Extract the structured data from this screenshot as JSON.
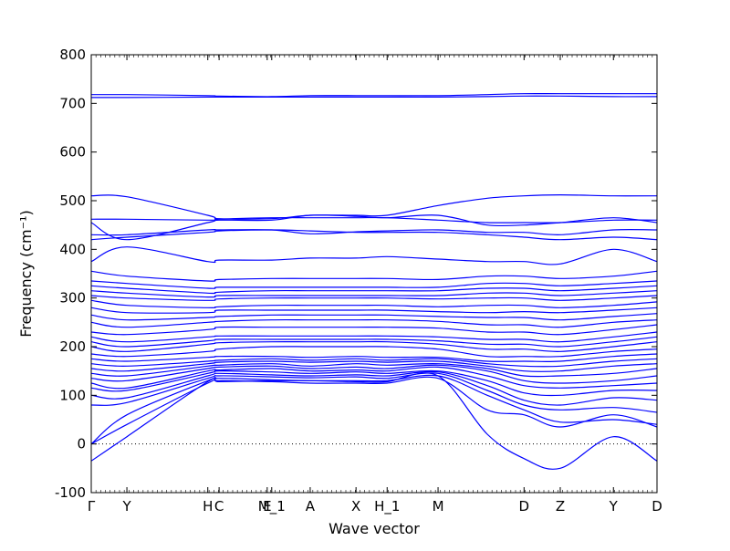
{
  "chart_data": {
    "type": "line",
    "title": "",
    "xlabel": "Wave vector",
    "ylabel": "Frequency (cm⁻¹)",
    "ylim": [
      -100,
      800
    ],
    "yticks": [
      -100,
      0,
      100,
      200,
      300,
      400,
      500,
      600,
      700,
      800
    ],
    "xlim": [
      0,
      1
    ],
    "grid": false,
    "zero_line": true,
    "line_color": "#0000ff",
    "high_symmetry_points": [
      {
        "label": "Γ",
        "x": 0.0
      },
      {
        "label": "Y",
        "x": 0.063
      },
      {
        "label": "H",
        "x": 0.206
      },
      {
        "label": "C",
        "x": 0.226
      },
      {
        "label": "E",
        "x": 0.311
      },
      {
        "label": "M_1",
        "x": 0.319
      },
      {
        "label": "A",
        "x": 0.387
      },
      {
        "label": "X",
        "x": 0.468
      },
      {
        "label": "H_1",
        "x": 0.523
      },
      {
        "label": "M",
        "x": 0.613
      },
      {
        "label": "D",
        "x": 0.765
      },
      {
        "label": "Z",
        "x": 0.829
      },
      {
        "label": "Y",
        "x": 0.923
      },
      {
        "label": "D",
        "x": 1.0
      }
    ],
    "bands_x": [
      0,
      0.063,
      0.206,
      0.226,
      0.319,
      0.387,
      0.468,
      0.523,
      0.613,
      0.7,
      0.765,
      0.829,
      0.923,
      1.0
    ],
    "bands": [
      [
        -35,
        15,
        128,
        128,
        130,
        130,
        128,
        128,
        140,
        20,
        -30,
        -50,
        15,
        -35
      ],
      [
        0,
        40,
        125,
        130,
        128,
        125,
        125,
        125,
        135,
        70,
        60,
        35,
        60,
        35
      ],
      [
        0,
        60,
        130,
        135,
        132,
        130,
        130,
        130,
        140,
        100,
        70,
        45,
        50,
        40
      ],
      [
        80,
        85,
        135,
        140,
        138,
        136,
        138,
        135,
        145,
        110,
        80,
        70,
        75,
        65
      ],
      [
        100,
        95,
        140,
        145,
        142,
        140,
        142,
        140,
        148,
        120,
        90,
        80,
        95,
        90
      ],
      [
        115,
        110,
        145,
        150,
        148,
        145,
        148,
        145,
        150,
        130,
        105,
        100,
        110,
        110
      ],
      [
        125,
        115,
        150,
        152,
        155,
        150,
        152,
        150,
        158,
        140,
        120,
        115,
        120,
        125
      ],
      [
        135,
        130,
        155,
        158,
        160,
        155,
        158,
        155,
        162,
        150,
        130,
        125,
        130,
        140
      ],
      [
        145,
        140,
        160,
        162,
        165,
        160,
        165,
        162,
        165,
        155,
        140,
        140,
        145,
        155
      ],
      [
        155,
        150,
        165,
        168,
        170,
        168,
        170,
        168,
        170,
        160,
        150,
        150,
        160,
        165
      ],
      [
        165,
        160,
        170,
        172,
        175,
        172,
        175,
        172,
        175,
        165,
        160,
        160,
        170,
        175
      ],
      [
        175,
        170,
        178,
        180,
        180,
        178,
        180,
        178,
        178,
        170,
        170,
        170,
        180,
        185
      ],
      [
        185,
        180,
        190,
        195,
        200,
        200,
        200,
        200,
        195,
        180,
        180,
        180,
        190,
        195
      ],
      [
        200,
        190,
        205,
        208,
        210,
        210,
        210,
        210,
        205,
        195,
        195,
        190,
        200,
        210
      ],
      [
        210,
        200,
        212,
        215,
        215,
        215,
        215,
        215,
        212,
        205,
        205,
        200,
        210,
        220
      ],
      [
        220,
        210,
        220,
        222,
        222,
        222,
        222,
        222,
        220,
        215,
        215,
        210,
        220,
        230
      ],
      [
        230,
        225,
        235,
        240,
        240,
        240,
        240,
        240,
        238,
        230,
        230,
        225,
        235,
        245
      ],
      [
        250,
        240,
        250,
        252,
        255,
        255,
        255,
        255,
        252,
        245,
        245,
        240,
        250,
        255
      ],
      [
        265,
        255,
        260,
        262,
        265,
        265,
        265,
        265,
        262,
        260,
        260,
        255,
        262,
        268
      ],
      [
        280,
        270,
        270,
        275,
        275,
        275,
        275,
        275,
        272,
        270,
        272,
        270,
        275,
        280
      ],
      [
        295,
        285,
        280,
        282,
        285,
        285,
        285,
        285,
        282,
        285,
        285,
        280,
        285,
        292
      ],
      [
        305,
        300,
        295,
        298,
        300,
        300,
        300,
        300,
        298,
        300,
        300,
        295,
        300,
        305
      ],
      [
        315,
        310,
        302,
        305,
        305,
        305,
        305,
        305,
        305,
        310,
        310,
        305,
        310,
        315
      ],
      [
        325,
        320,
        310,
        312,
        315,
        315,
        315,
        315,
        315,
        320,
        320,
        315,
        320,
        325
      ],
      [
        335,
        330,
        320,
        322,
        322,
        322,
        322,
        322,
        322,
        330,
        330,
        325,
        330,
        335
      ],
      [
        355,
        345,
        335,
        338,
        340,
        340,
        340,
        340,
        338,
        345,
        345,
        340,
        345,
        355
      ],
      [
        375,
        405,
        375,
        378,
        378,
        382,
        382,
        385,
        380,
        375,
        375,
        370,
        400,
        375
      ],
      [
        420,
        425,
        435,
        438,
        440,
        438,
        435,
        435,
        435,
        430,
        425,
        420,
        425,
        420
      ],
      [
        430,
        430,
        440,
        440,
        440,
        432,
        436,
        438,
        440,
        435,
        435,
        430,
        440,
        440
      ],
      [
        455,
        420,
        455,
        460,
        460,
        470,
        468,
        465,
        470,
        450,
        450,
        455,
        465,
        455
      ],
      [
        462,
        462,
        460,
        462,
        465,
        465,
        465,
        465,
        460,
        455,
        455,
        455,
        460,
        460
      ],
      [
        510,
        508,
        470,
        463,
        463,
        470,
        470,
        470,
        490,
        505,
        510,
        512,
        510,
        510
      ],
      [
        712,
        712,
        713,
        713,
        713,
        713,
        713,
        713,
        713,
        714,
        715,
        715,
        714,
        714
      ],
      [
        718,
        718,
        716,
        715,
        714,
        716,
        716,
        716,
        716,
        718,
        720,
        720,
        720,
        720
      ]
    ]
  }
}
